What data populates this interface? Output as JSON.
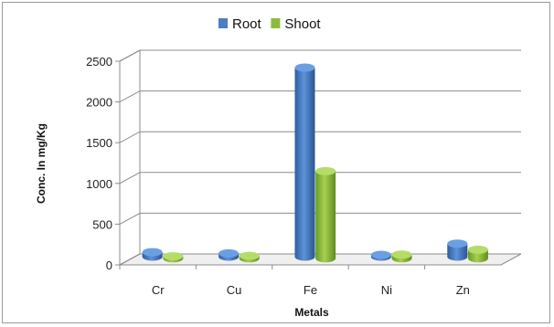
{
  "chart_data": {
    "type": "bar",
    "style": "3d-cylinder",
    "categories": [
      "Cr",
      "Cu",
      "Fe",
      "Ni",
      "Zn"
    ],
    "series": [
      {
        "name": "Root",
        "values": [
          55,
          40,
          2320,
          22,
          160
        ],
        "color": "#4a7ec6"
      },
      {
        "name": "Shoot",
        "values": [
          25,
          30,
          1070,
          45,
          105
        ],
        "color": "#8bbb3c"
      }
    ],
    "title": "",
    "xlabel": "Metals",
    "ylabel": "Conc. In mg/Kg",
    "ylim": [
      0,
      2500
    ],
    "yticks": [
      0,
      500,
      1000,
      1500,
      2000,
      2500
    ],
    "grid": true,
    "legend": "top-center"
  }
}
